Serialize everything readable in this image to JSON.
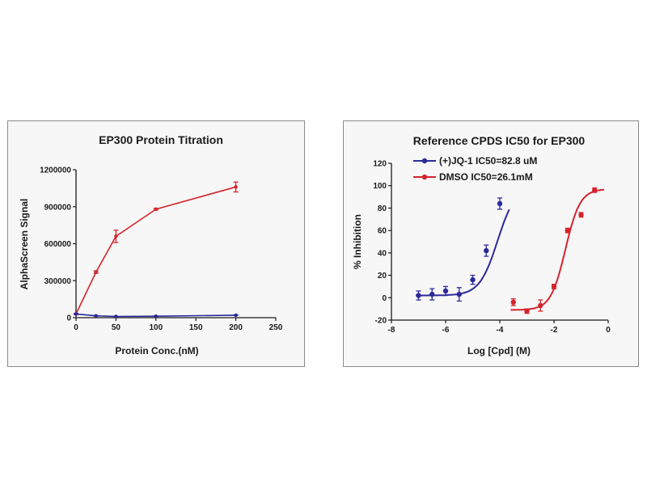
{
  "colors": {
    "red": "#d4242c",
    "blue": "#2b2a9a",
    "axis": "#1a1a1a"
  },
  "chart_data": [
    {
      "type": "line",
      "title": "EP300 Protein Titration",
      "xlabel": "Protein Conc.(nM)",
      "ylabel": "AlphaScreen Signal",
      "xlim": [
        0,
        250
      ],
      "ylim": [
        0,
        1200000
      ],
      "xticks": [
        "0",
        "50",
        "100",
        "150",
        "200",
        "250"
      ],
      "yticks": [
        "0",
        "300000",
        "600000",
        "900000",
        "1200000"
      ],
      "grid": false,
      "series": [
        {
          "color": "red",
          "x": [
            0,
            25,
            50,
            100,
            200
          ],
          "y": [
            30000,
            370000,
            660000,
            880000,
            1060000
          ],
          "err": [
            5000,
            10000,
            50000,
            8000,
            40000
          ]
        },
        {
          "color": "blue",
          "x": [
            0,
            25,
            50,
            100,
            200
          ],
          "y": [
            30000,
            15000,
            10000,
            12000,
            20000
          ],
          "err": [
            2000,
            2000,
            2000,
            2000,
            2000
          ]
        }
      ]
    },
    {
      "type": "scatter",
      "title": "Reference CPDS IC50 for EP300",
      "xlabel": "Log [Cpd] (M)",
      "ylabel": "% Inhibition",
      "xlim": [
        -8,
        0
      ],
      "ylim": [
        -20,
        120
      ],
      "xticks": [
        "-8",
        "-6",
        "-4",
        "-2",
        "0"
      ],
      "yticks": [
        "-20",
        "0",
        "20",
        "40",
        "60",
        "80",
        "100",
        "120"
      ],
      "legend_position": "top-left",
      "grid": false,
      "series": [
        {
          "name": "(+)JQ-1 IC50=82.8 uM",
          "color": "blue",
          "x": [
            -7,
            -6.5,
            -6,
            -5.5,
            -5,
            -4.5,
            -4
          ],
          "y": [
            2,
            3,
            6,
            3,
            16,
            42,
            84
          ],
          "err": [
            4,
            5,
            4,
            6,
            4,
            5,
            5
          ],
          "fit": {
            "bottom": 2,
            "top": 100,
            "logIC50": -4.08,
            "hill": 1.3
          }
        },
        {
          "name": "DMSO IC50=26.1mM",
          "color": "red",
          "x": [
            -3.5,
            -3,
            -2.5,
            -2,
            -1.5,
            -1,
            -0.5
          ],
          "y": [
            -4,
            -12,
            -7,
            10,
            60,
            74,
            96
          ],
          "err": [
            3,
            2,
            5,
            2,
            2,
            2,
            2
          ],
          "fit": {
            "bottom": -11,
            "top": 97,
            "logIC50": -1.58,
            "hill": 1.6
          }
        }
      ]
    }
  ]
}
